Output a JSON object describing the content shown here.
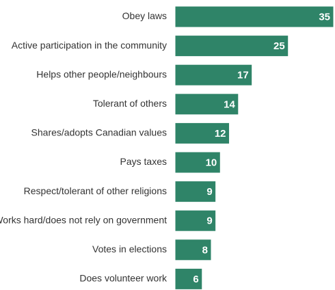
{
  "chart_data": {
    "type": "bar",
    "orientation": "horizontal",
    "categories": [
      "Obey laws",
      "Active participation in the community",
      "Helps other people/neighbours",
      "Tolerant of others",
      "Shares/adopts Canadian values",
      "Pays taxes",
      "Respect/tolerant of other religions",
      "Works hard/does not rely on government",
      "Votes in elections",
      "Does volunteer work"
    ],
    "values": [
      35,
      25,
      17,
      14,
      12,
      10,
      9,
      9,
      8,
      6
    ],
    "data_labels": [
      "35",
      "25",
      "17",
      "14",
      "12",
      "10",
      "9",
      "9",
      "8",
      "6"
    ],
    "xlim": [
      0,
      35
    ],
    "grid": false,
    "legend": "none",
    "colors": {
      "bar": "#2f8468",
      "bar_outline": "#ffffff",
      "label_text": "#333333",
      "value_text": "#ffffff"
    }
  }
}
